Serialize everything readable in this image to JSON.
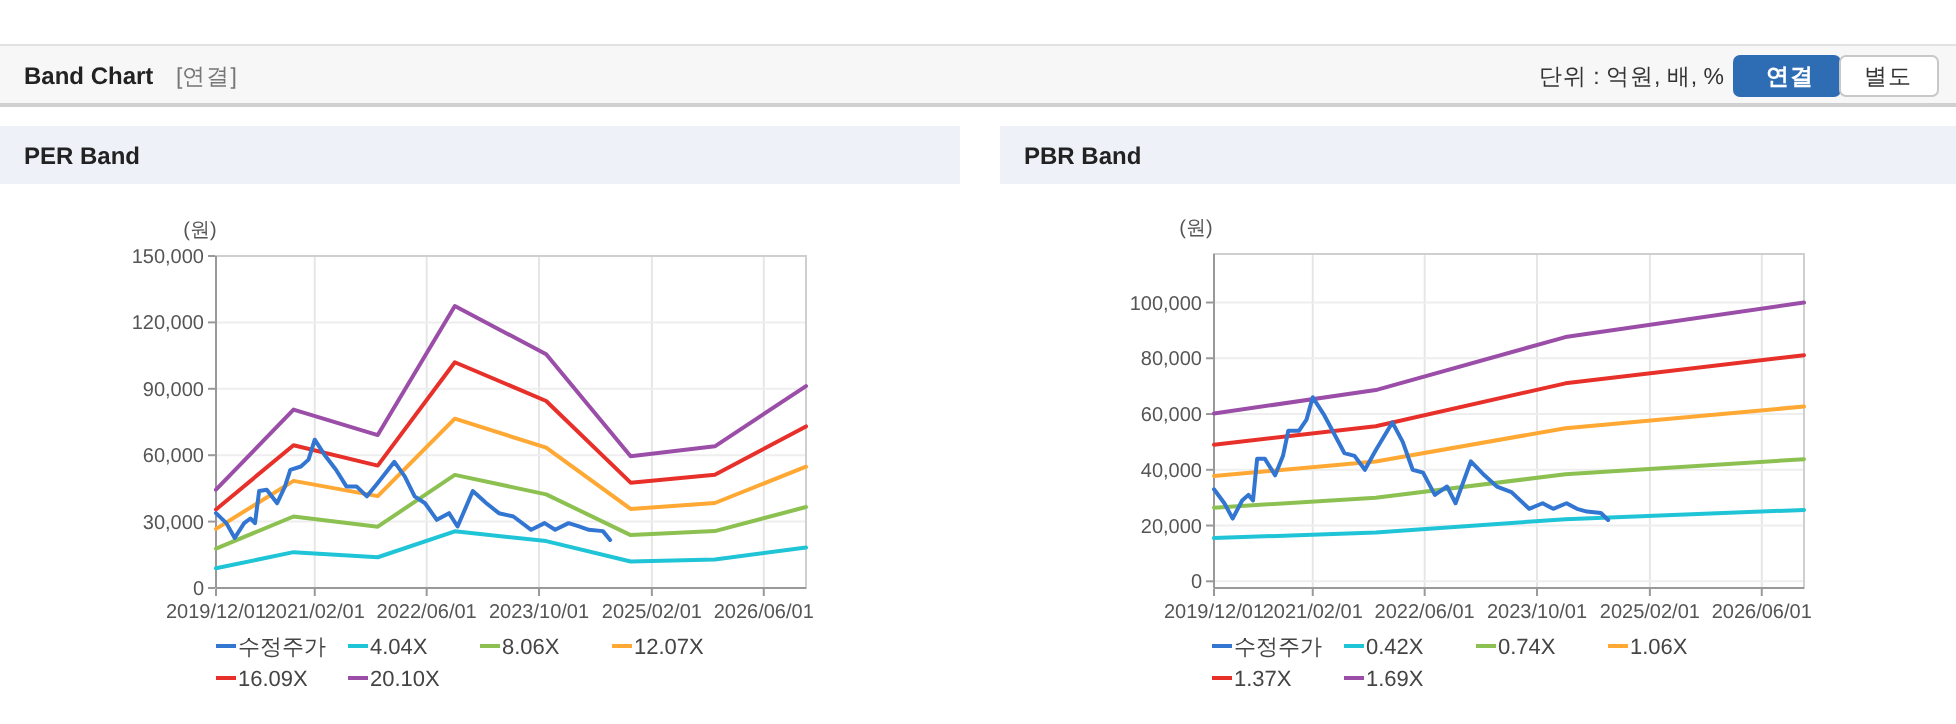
{
  "chart_data": [
    {
      "type": "other",
      "title": "Band Chart",
      "annotations": [
        "[연결]",
        "단위 : 억원, 배, %",
        "연결",
        "별도"
      ]
    },
    {
      "type": "line",
      "title": "PER Band",
      "ylabel": "(원)",
      "grid": true,
      "legend": "bottom",
      "xlim": [
        "2019-12-01",
        "2026-12-01"
      ],
      "xticks": [
        {
          "value": "2019-12-01",
          "label": "2019/12/01"
        },
        {
          "value": "2021-02-01",
          "label": "2021/02/01"
        },
        {
          "value": "2022-06-01",
          "label": "2022/06/01"
        },
        {
          "value": "2023-10-01",
          "label": "2023/10/01"
        },
        {
          "value": "2025-02-01",
          "label": "2025/02/01"
        },
        {
          "value": "2026-06-01",
          "label": "2026/06/01"
        }
      ],
      "ylim": [
        0,
        150000
      ],
      "yticks": [
        0,
        {
          "value": 30000,
          "label": "30,000"
        },
        {
          "value": 60000,
          "label": "60,000"
        },
        {
          "value": 90000,
          "label": "90,000"
        },
        {
          "value": 120000,
          "label": "120,000"
        },
        {
          "value": 150000,
          "label": "150,000"
        }
      ],
      "series": [
        {
          "name": "수정주가",
          "color": "#3276d2",
          "x": [
            "2019-12-01",
            "2020-01-15",
            "2020-02-20",
            "2020-04-01",
            "2020-04-28",
            "2020-05-18",
            "2020-06-05",
            "2020-07-08",
            "2020-08-22",
            "2020-09-25",
            "2020-10-18",
            "2020-12-03",
            "2021-01-05",
            "2021-02-01",
            "2021-03-20",
            "2021-05-04",
            "2021-06-18",
            "2021-08-01",
            "2021-09-15",
            "2021-11-01",
            "2022-01-12",
            "2022-02-26",
            "2022-04-10",
            "2022-05-25",
            "2022-07-15",
            "2022-09-06",
            "2022-10-13",
            "2022-12-18",
            "2023-02-15",
            "2023-04-10",
            "2023-06-12",
            "2023-08-28",
            "2023-10-25",
            "2023-12-10",
            "2024-02-06",
            "2024-03-22",
            "2024-05-04",
            "2024-07-04",
            "2024-08-04"
          ],
          "values": [
            33800,
            29300,
            22600,
            29300,
            31400,
            29300,
            43800,
            44400,
            38300,
            45900,
            53400,
            54900,
            58000,
            67000,
            59500,
            53400,
            45900,
            45900,
            41400,
            47400,
            57000,
            50400,
            41400,
            38300,
            30800,
            33800,
            27800,
            43800,
            38300,
            33800,
            32300,
            26300,
            29300,
            26300,
            29300,
            27800,
            26300,
            25700,
            21700
          ]
        },
        {
          "name": "4.04X",
          "color": "#1fc4d6",
          "x": [
            "2019-12-01",
            "2020-11-01",
            "2021-11-01",
            "2022-10-01",
            "2023-11-01",
            "2024-11-01",
            "2025-11-01",
            "2026-12-01"
          ],
          "values": [
            8900,
            16200,
            13900,
            25600,
            21200,
            12000,
            12900,
            18300
          ]
        },
        {
          "name": "8.06X",
          "color": "#8cc152",
          "x": [
            "2019-12-01",
            "2020-11-01",
            "2021-11-01",
            "2022-10-01",
            "2023-11-01",
            "2024-11-01",
            "2025-11-01",
            "2026-12-01"
          ],
          "values": [
            17800,
            32300,
            27700,
            51100,
            42300,
            23900,
            25700,
            36600
          ]
        },
        {
          "name": "12.07X",
          "color": "#ffa833",
          "x": [
            "2019-12-01",
            "2020-11-01",
            "2021-11-01",
            "2022-10-01",
            "2023-11-01",
            "2024-11-01",
            "2025-11-01",
            "2026-12-01"
          ],
          "values": [
            26700,
            48400,
            41500,
            76500,
            63400,
            35700,
            38400,
            54800
          ]
        },
        {
          "name": "16.09X",
          "color": "#e8302a",
          "x": [
            "2019-12-01",
            "2020-11-01",
            "2021-11-01",
            "2022-10-01",
            "2023-11-01",
            "2024-11-01",
            "2025-11-01",
            "2026-12-01"
          ],
          "values": [
            35500,
            64500,
            55300,
            102000,
            84500,
            47600,
            51200,
            73000
          ]
        },
        {
          "name": "20.10X",
          "color": "#9b4ea8",
          "x": [
            "2019-12-01",
            "2020-11-01",
            "2021-11-01",
            "2022-10-01",
            "2023-11-01",
            "2024-11-01",
            "2025-11-01",
            "2026-12-01"
          ],
          "values": [
            44400,
            80600,
            69100,
            127400,
            105600,
            59500,
            64000,
            91200
          ]
        }
      ]
    },
    {
      "type": "line",
      "title": "PBR Band",
      "ylabel": "(원)",
      "grid": true,
      "legend": "bottom",
      "xlim": [
        "2019-12-01",
        "2026-12-01"
      ],
      "xticks": [
        {
          "value": "2019-12-01",
          "label": "2019/12/01"
        },
        {
          "value": "2021-02-01",
          "label": "2021/02/01"
        },
        {
          "value": "2022-06-01",
          "label": "2022/06/01"
        },
        {
          "value": "2023-10-01",
          "label": "2023/10/01"
        },
        {
          "value": "2025-02-01",
          "label": "2025/02/01"
        },
        {
          "value": "2026-06-01",
          "label": "2026/06/01"
        }
      ],
      "ylim": [
        -2400,
        117400
      ],
      "yticks": [
        0,
        {
          "value": 20000,
          "label": "20,000"
        },
        {
          "value": 40000,
          "label": "40,000"
        },
        {
          "value": 60000,
          "label": "60,000"
        },
        {
          "value": 80000,
          "label": "80,000"
        },
        {
          "value": 100000,
          "label": "100,000"
        }
      ],
      "series": [
        {
          "name": "수정주가",
          "color": "#3276d2",
          "x": [
            "2019-12-01",
            "2020-01-15",
            "2020-02-20",
            "2020-04-01",
            "2020-04-28",
            "2020-05-18",
            "2020-06-05",
            "2020-07-08",
            "2020-08-22",
            "2020-09-25",
            "2020-10-18",
            "2020-12-03",
            "2021-01-05",
            "2021-02-01",
            "2021-03-20",
            "2021-05-04",
            "2021-06-18",
            "2021-08-01",
            "2021-09-15",
            "2021-11-01",
            "2022-01-12",
            "2022-02-26",
            "2022-04-10",
            "2022-05-25",
            "2022-07-15",
            "2022-09-06",
            "2022-10-13",
            "2022-12-18",
            "2023-02-15",
            "2023-04-10",
            "2023-06-12",
            "2023-08-28",
            "2023-10-25",
            "2023-12-10",
            "2024-02-06",
            "2024-03-22",
            "2024-05-04",
            "2024-07-04",
            "2024-08-04"
          ],
          "values": [
            33000,
            28000,
            22500,
            29000,
            31000,
            29000,
            44000,
            44000,
            38000,
            45000,
            54000,
            54000,
            58000,
            66000,
            60000,
            53000,
            46000,
            45000,
            40000,
            47000,
            57000,
            50000,
            40000,
            39000,
            31000,
            34000,
            28000,
            43000,
            38000,
            34000,
            32000,
            26000,
            28000,
            26000,
            28000,
            26000,
            25000,
            24500,
            22000
          ]
        },
        {
          "name": "0.42X",
          "color": "#1fc4d6",
          "x": [
            "2019-12-01",
            "2021-11-01",
            "2024-02-01",
            "2026-12-01"
          ],
          "values": [
            15500,
            17500,
            22300,
            25600
          ]
        },
        {
          "name": "0.74X",
          "color": "#8cc152",
          "x": [
            "2019-12-01",
            "2021-11-01",
            "2024-02-01",
            "2026-12-01"
          ],
          "values": [
            26400,
            30000,
            38400,
            43800
          ]
        },
        {
          "name": "1.06X",
          "color": "#ffa833",
          "x": [
            "2019-12-01",
            "2021-11-01",
            "2024-02-01",
            "2026-12-01"
          ],
          "values": [
            37800,
            43000,
            54900,
            62700
          ]
        },
        {
          "name": "1.37X",
          "color": "#e8302a",
          "x": [
            "2019-12-01",
            "2021-11-01",
            "2024-02-01",
            "2026-12-01"
          ],
          "values": [
            49000,
            55600,
            71000,
            81100
          ]
        },
        {
          "name": "1.69X",
          "color": "#9b4ea8",
          "x": [
            "2019-12-01",
            "2021-11-01",
            "2024-02-01",
            "2026-12-01"
          ],
          "values": [
            60200,
            68600,
            87600,
            100000
          ]
        }
      ]
    }
  ]
}
